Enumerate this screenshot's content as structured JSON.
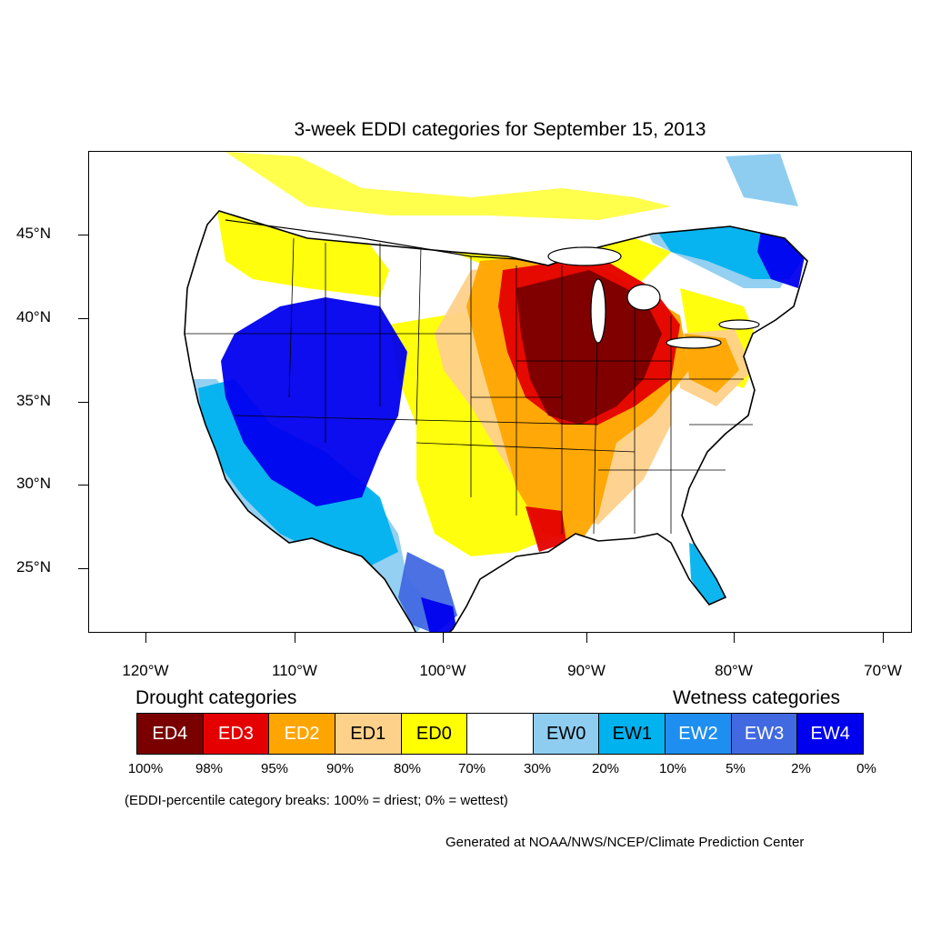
{
  "title": "3-week EDDI categories for September 15, 2013",
  "lat_ticks": [
    "45°N",
    "40°N",
    "35°N",
    "30°N",
    "25°N"
  ],
  "lon_ticks": [
    "120°W",
    "110°W",
    "100°W",
    "90°W",
    "80°W",
    "70°W"
  ],
  "legend": {
    "drought_heading": "Drought categories",
    "wetness_heading": "Wetness categories",
    "categories": [
      {
        "label": "ED4",
        "color": "#7a0000",
        "text_color": "#ffffff"
      },
      {
        "label": "ED3",
        "color": "#e50000",
        "text_color": "#ffffff"
      },
      {
        "label": "ED2",
        "color": "#ffa500",
        "text_color": "#ffffff"
      },
      {
        "label": "ED1",
        "color": "#fed18b",
        "text_color": "#000000"
      },
      {
        "label": "ED0",
        "color": "#ffff00",
        "text_color": "#000000"
      },
      {
        "label": "",
        "color": "#ffffff",
        "text_color": "#000000"
      },
      {
        "label": "EW0",
        "color": "#8ecdf0",
        "text_color": "#000000"
      },
      {
        "label": "EW1",
        "color": "#00b2ee",
        "text_color": "#000000"
      },
      {
        "label": "EW2",
        "color": "#1e8ff0",
        "text_color": "#ffffff"
      },
      {
        "label": "EW3",
        "color": "#4169e1",
        "text_color": "#ffffff"
      },
      {
        "label": "EW4",
        "color": "#0000ee",
        "text_color": "#ffffff"
      }
    ],
    "breaks": [
      "100%",
      "98%",
      "95%",
      "90%",
      "80%",
      "70%",
      "30%",
      "20%",
      "10%",
      "5%",
      "2%",
      "0%"
    ]
  },
  "note": "(EDDI-percentile category breaks: 100% = driest; 0% = wettest)",
  "credit": "Generated at NOAA/NWS/NCEP/Climate Prediction Center"
}
